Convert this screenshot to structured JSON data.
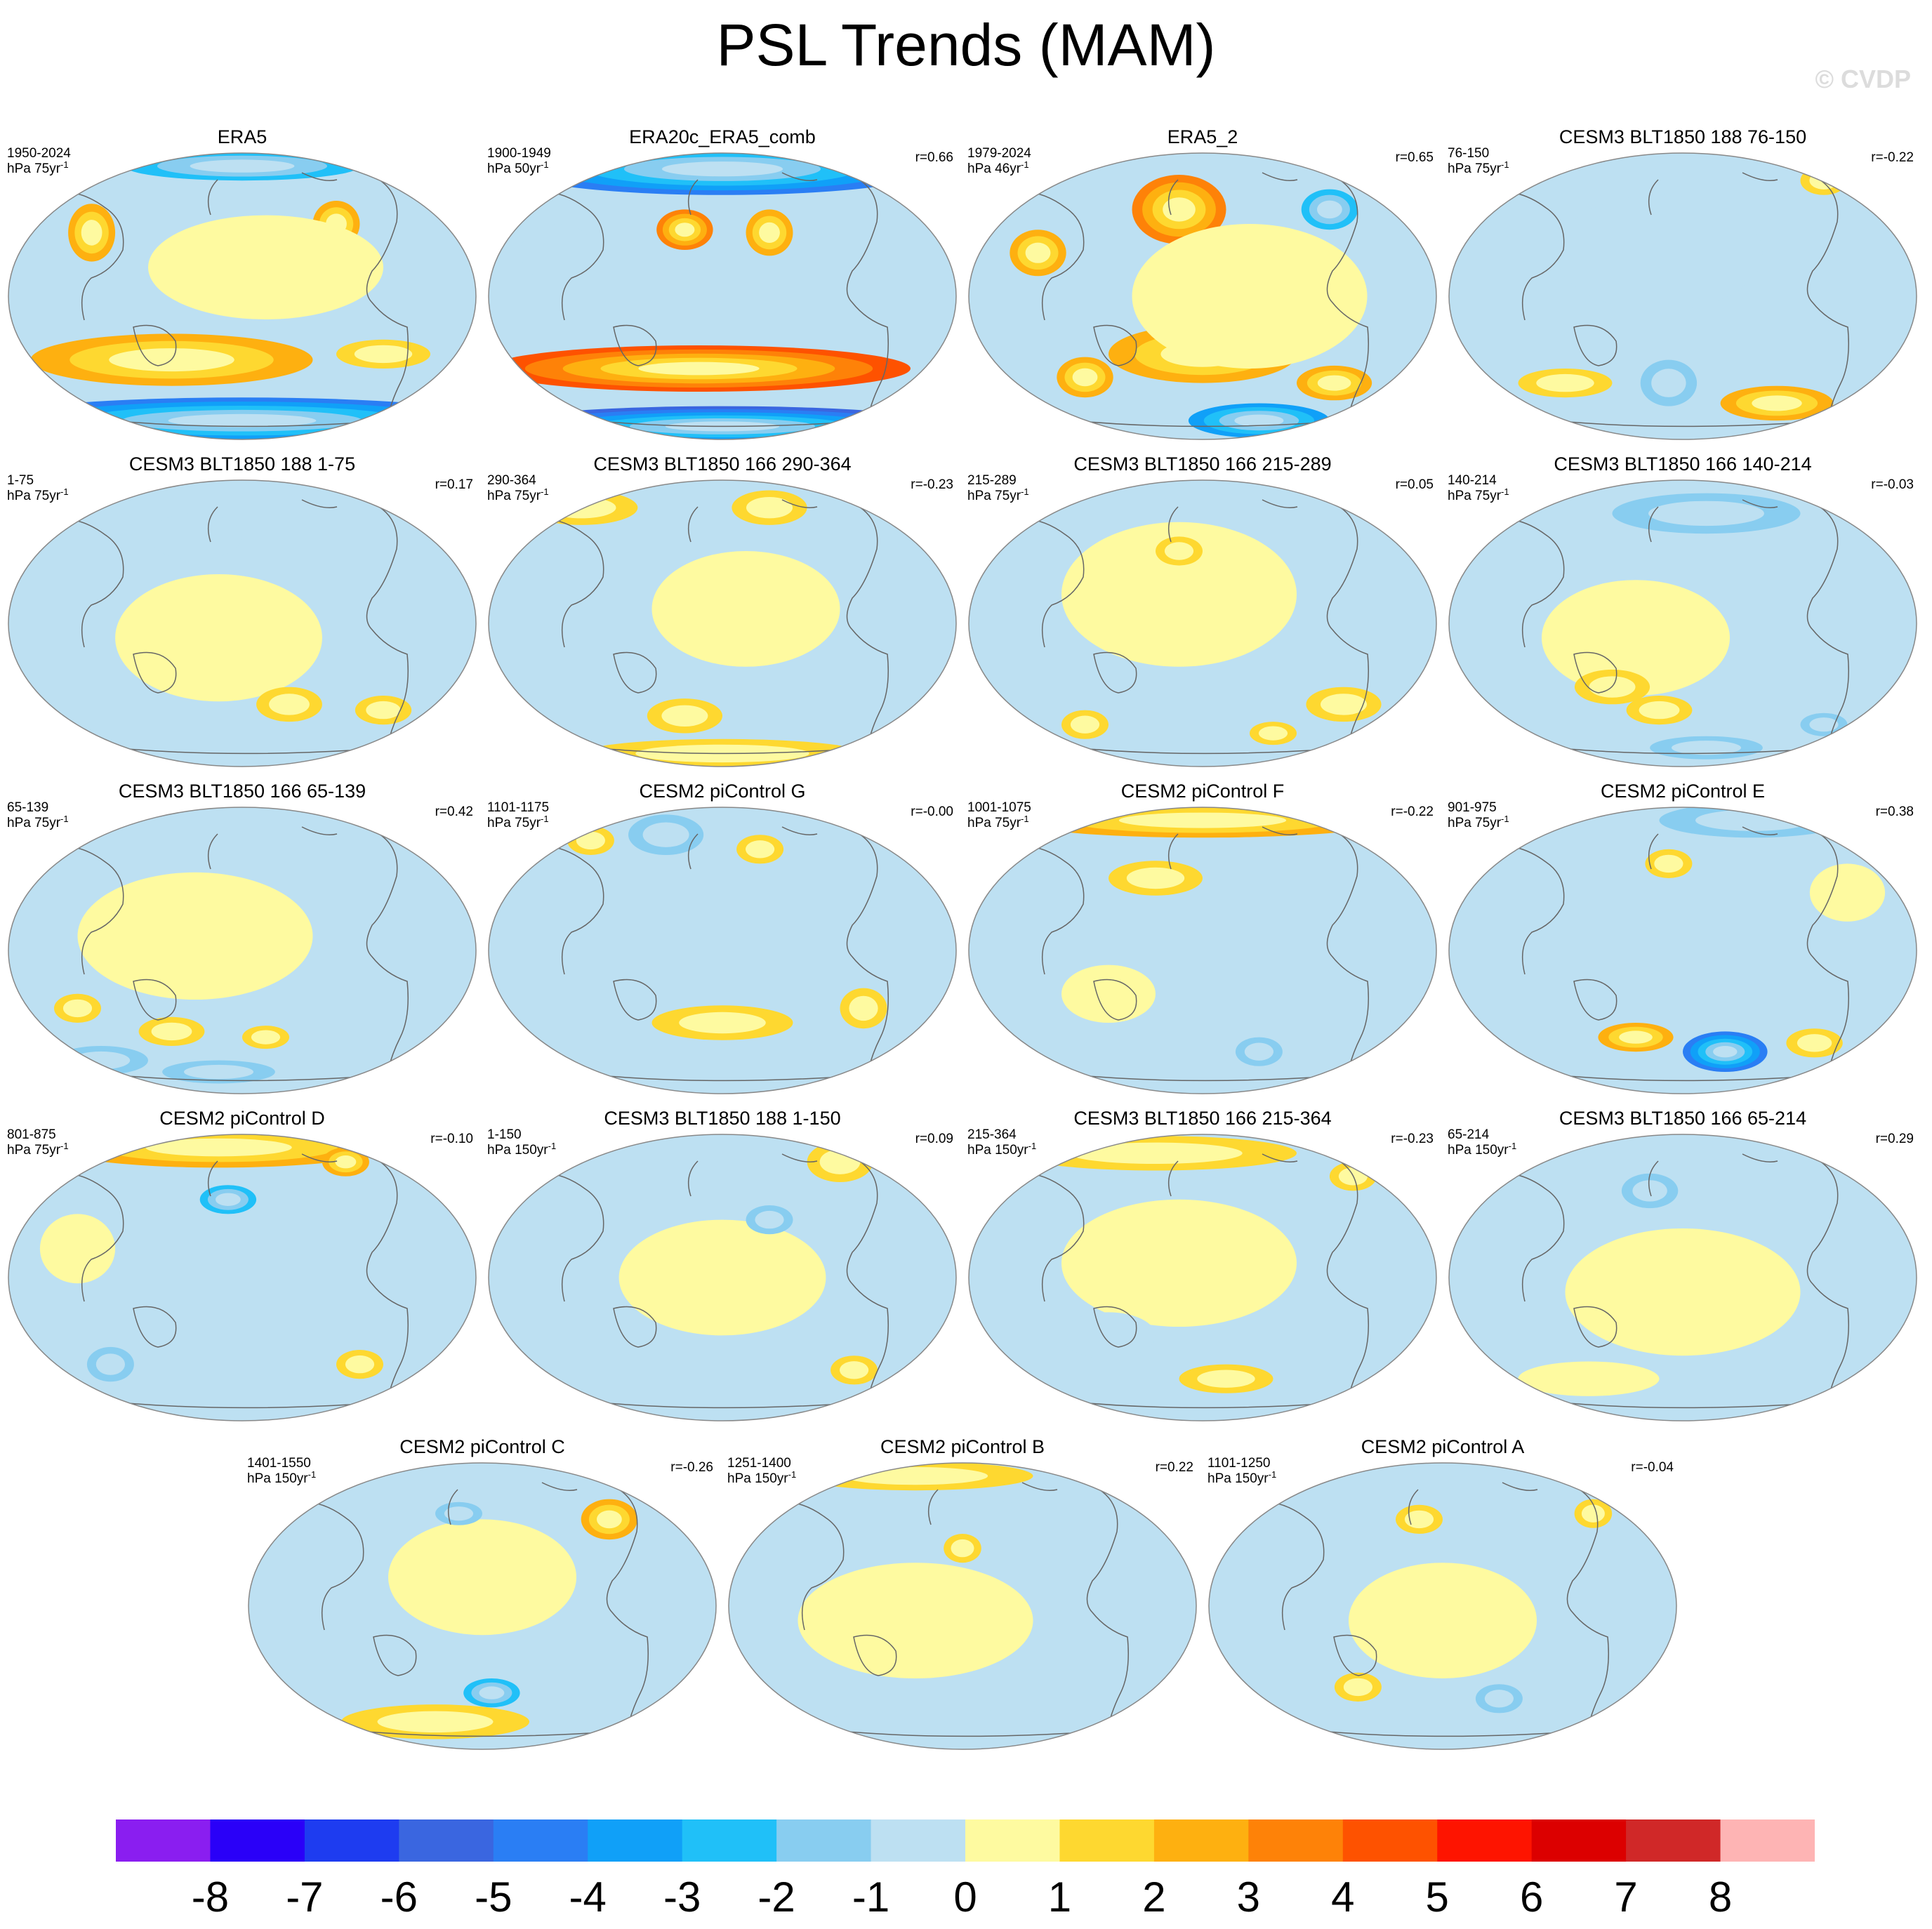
{
  "title": "PSL Trends (MAM)",
  "watermark": "© CVDP",
  "panels": [
    {
      "title": "ERA5",
      "period": "1950-2024",
      "units": "hPa 75yr",
      "exp": "-1",
      "corr": "",
      "blobs": [
        [
          0.18,
          0.28,
          0.05,
          0.1,
          3
        ],
        [
          0.7,
          0.25,
          0.05,
          0.08,
          3
        ],
        [
          0.35,
          0.72,
          0.3,
          0.09,
          3
        ],
        [
          0.8,
          0.7,
          0.1,
          0.05,
          2
        ],
        [
          0.5,
          0.93,
          0.55,
          0.08,
          -5
        ],
        [
          0.5,
          0.05,
          0.25,
          0.05,
          -3
        ],
        [
          0.55,
          0.4,
          0.25,
          0.18,
          0.4
        ]
      ]
    },
    {
      "title": "ERA20c_ERA5_comb",
      "period": "1900-1949",
      "units": "hPa 50yr",
      "exp": "-1",
      "corr": "r=0.66",
      "blobs": [
        [
          0.5,
          0.06,
          0.45,
          0.09,
          -5
        ],
        [
          0.42,
          0.27,
          0.06,
          0.07,
          4
        ],
        [
          0.6,
          0.28,
          0.05,
          0.08,
          3
        ],
        [
          0.45,
          0.75,
          0.45,
          0.08,
          5
        ],
        [
          0.5,
          0.95,
          0.5,
          0.07,
          -6
        ],
        [
          0.15,
          0.35,
          0.08,
          0.1,
          -1
        ]
      ]
    },
    {
      "title": "ERA5_2",
      "period": "1979-2024",
      "units": "hPa 46yr",
      "exp": "-1",
      "corr": "r=0.65",
      "blobs": [
        [
          0.45,
          0.2,
          0.1,
          0.12,
          4
        ],
        [
          0.77,
          0.2,
          0.06,
          0.07,
          -3
        ],
        [
          0.15,
          0.35,
          0.06,
          0.08,
          3
        ],
        [
          0.1,
          0.08,
          0.1,
          0.06,
          -3
        ],
        [
          0.5,
          0.7,
          0.2,
          0.1,
          3
        ],
        [
          0.25,
          0.78,
          0.06,
          0.07,
          3
        ],
        [
          0.78,
          0.8,
          0.08,
          0.06,
          3
        ],
        [
          0.62,
          0.93,
          0.15,
          0.06,
          -4
        ],
        [
          0.6,
          0.5,
          0.25,
          0.25,
          0.5
        ]
      ]
    },
    {
      "title": "CESM3 BLT1850 188 76-150",
      "period": "76-150",
      "units": "hPa 75yr",
      "exp": "-1",
      "corr": "r=-0.22",
      "blobs": [
        [
          0.45,
          0.35,
          0.22,
          0.2,
          -1
        ],
        [
          0.47,
          0.8,
          0.06,
          0.08,
          -2
        ],
        [
          0.7,
          0.87,
          0.12,
          0.06,
          3
        ],
        [
          0.25,
          0.8,
          0.1,
          0.05,
          2
        ],
        [
          0.8,
          0.1,
          0.05,
          0.05,
          2
        ]
      ]
    },
    {
      "title": "CESM3 BLT1850 188 1-75",
      "period": "1-75",
      "units": "hPa 75yr",
      "exp": "-1",
      "corr": "r=0.17",
      "blobs": [
        [
          0.45,
          0.55,
          0.22,
          0.22,
          0.5
        ],
        [
          0.6,
          0.78,
          0.07,
          0.06,
          2
        ],
        [
          0.8,
          0.8,
          0.06,
          0.05,
          2
        ],
        [
          0.4,
          0.2,
          0.1,
          0.08,
          -1
        ]
      ]
    },
    {
      "title": "CESM3 BLT1850 166 290-364",
      "period": "290-364",
      "units": "hPa 75yr",
      "exp": "-1",
      "corr": "r=-0.23",
      "blobs": [
        [
          0.2,
          0.1,
          0.12,
          0.06,
          2
        ],
        [
          0.6,
          0.1,
          0.08,
          0.06,
          2
        ],
        [
          0.42,
          0.82,
          0.08,
          0.06,
          2
        ],
        [
          0.5,
          0.95,
          0.3,
          0.05,
          2
        ],
        [
          0.55,
          0.45,
          0.2,
          0.2,
          0.5
        ]
      ]
    },
    {
      "title": "CESM3 BLT1850 166 215-289",
      "period": "215-289",
      "units": "hPa 75yr",
      "exp": "-1",
      "corr": "r=0.05",
      "blobs": [
        [
          0.45,
          0.4,
          0.25,
          0.25,
          0.5
        ],
        [
          0.45,
          0.25,
          0.05,
          0.05,
          1.5
        ],
        [
          0.25,
          0.85,
          0.05,
          0.05,
          2
        ],
        [
          0.8,
          0.78,
          0.08,
          0.06,
          2
        ],
        [
          0.65,
          0.88,
          0.05,
          0.04,
          2
        ]
      ]
    },
    {
      "title": "CESM3 BLT1850 166 140-214",
      "period": "140-214",
      "units": "hPa 75yr",
      "exp": "-1",
      "corr": "r=-0.03",
      "blobs": [
        [
          0.55,
          0.12,
          0.2,
          0.07,
          -2
        ],
        [
          0.4,
          0.55,
          0.2,
          0.2,
          0.5
        ],
        [
          0.35,
          0.72,
          0.08,
          0.06,
          2
        ],
        [
          0.45,
          0.8,
          0.07,
          0.05,
          2
        ],
        [
          0.55,
          0.93,
          0.12,
          0.04,
          -2
        ],
        [
          0.8,
          0.85,
          0.05,
          0.04,
          -2
        ]
      ]
    },
    {
      "title": "CESM3 BLT1850 166 65-139",
      "period": "65-139",
      "units": "hPa 75yr",
      "exp": "-1",
      "corr": "r=0.42",
      "blobs": [
        [
          0.4,
          0.45,
          0.25,
          0.22,
          0.5
        ],
        [
          0.15,
          0.7,
          0.05,
          0.05,
          2
        ],
        [
          0.35,
          0.78,
          0.07,
          0.05,
          2
        ],
        [
          0.55,
          0.8,
          0.05,
          0.04,
          2
        ],
        [
          0.2,
          0.88,
          0.1,
          0.05,
          -1.5
        ],
        [
          0.45,
          0.92,
          0.12,
          0.04,
          -2
        ]
      ]
    },
    {
      "title": "CESM2 piControl G",
      "period": "1101-1175",
      "units": "hPa 75yr",
      "exp": "-1",
      "corr": "r=-0.00",
      "blobs": [
        [
          0.38,
          0.1,
          0.08,
          0.07,
          -2
        ],
        [
          0.22,
          0.12,
          0.05,
          0.05,
          2
        ],
        [
          0.58,
          0.15,
          0.05,
          0.05,
          2
        ],
        [
          0.5,
          0.75,
          0.15,
          0.06,
          1.5
        ],
        [
          0.8,
          0.7,
          0.05,
          0.07,
          2
        ]
      ]
    },
    {
      "title": "CESM2 piControl F",
      "period": "1001-1075",
      "units": "hPa 75yr",
      "exp": "-1",
      "corr": "r=-0.22",
      "blobs": [
        [
          0.5,
          0.05,
          0.4,
          0.06,
          3
        ],
        [
          0.4,
          0.25,
          0.1,
          0.06,
          1.5
        ],
        [
          0.62,
          0.85,
          0.05,
          0.05,
          -2
        ],
        [
          0.3,
          0.65,
          0.1,
          0.1,
          1
        ]
      ]
    },
    {
      "title": "CESM2 piControl E",
      "period": "901-975",
      "units": "hPa 75yr",
      "exp": "-1",
      "corr": "r=0.38",
      "blobs": [
        [
          0.65,
          0.05,
          0.2,
          0.06,
          -2
        ],
        [
          0.47,
          0.2,
          0.05,
          0.05,
          2
        ],
        [
          0.59,
          0.85,
          0.09,
          0.07,
          -5
        ],
        [
          0.4,
          0.8,
          0.08,
          0.05,
          3
        ],
        [
          0.78,
          0.82,
          0.06,
          0.05,
          2
        ],
        [
          0.85,
          0.3,
          0.08,
          0.1,
          1
        ]
      ]
    },
    {
      "title": "CESM2 piControl D",
      "period": "801-875",
      "units": "hPa 75yr",
      "exp": "-1",
      "corr": "r=-0.10",
      "blobs": [
        [
          0.45,
          0.05,
          0.35,
          0.07,
          3
        ],
        [
          0.72,
          0.1,
          0.05,
          0.05,
          3
        ],
        [
          0.47,
          0.23,
          0.06,
          0.05,
          -3
        ],
        [
          0.22,
          0.8,
          0.05,
          0.06,
          -2
        ],
        [
          0.75,
          0.8,
          0.05,
          0.05,
          2
        ],
        [
          0.15,
          0.4,
          0.08,
          0.12,
          1
        ]
      ]
    },
    {
      "title": "CESM3 BLT1850 188 1-150",
      "period": "1-150",
      "units": "hPa 150yr",
      "exp": "-1",
      "corr": "r=0.09",
      "blobs": [
        [
          0.75,
          0.1,
          0.07,
          0.07,
          2
        ],
        [
          0.5,
          0.5,
          0.22,
          0.2,
          0.5
        ],
        [
          0.78,
          0.82,
          0.05,
          0.05,
          2
        ],
        [
          0.6,
          0.3,
          0.05,
          0.05,
          -1.5
        ]
      ]
    },
    {
      "title": "CESM3 BLT1850 166 215-364",
      "period": "215-364",
      "units": "hPa 150yr",
      "exp": "-1",
      "corr": "r=-0.23",
      "blobs": [
        [
          0.4,
          0.07,
          0.3,
          0.06,
          2
        ],
        [
          0.82,
          0.15,
          0.05,
          0.05,
          2
        ],
        [
          0.45,
          0.45,
          0.25,
          0.22,
          0.5
        ],
        [
          0.55,
          0.85,
          0.1,
          0.05,
          2
        ],
        [
          0.3,
          0.7,
          0.1,
          0.08,
          -1
        ]
      ]
    },
    {
      "title": "CESM3 BLT1850 166 65-214",
      "period": "65-214",
      "units": "hPa 150yr",
      "exp": "-1",
      "corr": "r=0.29",
      "blobs": [
        [
          0.43,
          0.2,
          0.06,
          0.06,
          -2
        ],
        [
          0.5,
          0.55,
          0.25,
          0.22,
          0.5
        ],
        [
          0.3,
          0.85,
          0.15,
          0.06,
          1
        ],
        [
          0.75,
          0.85,
          0.05,
          0.05,
          -1
        ]
      ]
    },
    {
      "title": "CESM2 piControl C",
      "period": "1401-1550",
      "units": "hPa 150yr",
      "exp": "-1",
      "corr": "r=-0.26",
      "blobs": [
        [
          0.77,
          0.2,
          0.06,
          0.07,
          3
        ],
        [
          0.52,
          0.8,
          0.06,
          0.05,
          -3
        ],
        [
          0.4,
          0.9,
          0.2,
          0.06,
          2
        ],
        [
          0.5,
          0.4,
          0.2,
          0.2,
          0.5
        ],
        [
          0.45,
          0.18,
          0.05,
          0.04,
          -2
        ]
      ]
    },
    {
      "title": "CESM2 piControl B",
      "period": "1251-1400",
      "units": "hPa 150yr",
      "exp": "-1",
      "corr": "r=0.22",
      "blobs": [
        [
          0.4,
          0.05,
          0.25,
          0.05,
          2
        ],
        [
          0.5,
          0.3,
          0.04,
          0.05,
          2
        ],
        [
          0.4,
          0.55,
          0.25,
          0.2,
          0.5
        ],
        [
          0.5,
          0.92,
          0.35,
          0.06,
          -1
        ],
        [
          0.58,
          0.2,
          0.08,
          0.06,
          -1
        ]
      ]
    },
    {
      "title": "CESM2 piControl A",
      "period": "1101-1250",
      "units": "hPa 150yr",
      "exp": "-1",
      "corr": "r=-0.04",
      "blobs": [
        [
          0.45,
          0.2,
          0.05,
          0.05,
          2
        ],
        [
          0.82,
          0.18,
          0.04,
          0.05,
          2
        ],
        [
          0.5,
          0.55,
          0.2,
          0.2,
          0.5
        ],
        [
          0.62,
          0.82,
          0.05,
          0.05,
          -1.5
        ],
        [
          0.32,
          0.78,
          0.05,
          0.05,
          2
        ]
      ]
    }
  ],
  "colorbar": {
    "labels": [
      "-8",
      "-7",
      "-6",
      "-5",
      "-4",
      "-3",
      "-2",
      "-1",
      "0",
      "1",
      "2",
      "3",
      "4",
      "5",
      "6",
      "7",
      "8"
    ],
    "colors": [
      "#8a1ef0",
      "#2a00f8",
      "#1e3cf0",
      "#3a66e0",
      "#2a7ef4",
      "#10a0f8",
      "#20c0f8",
      "#88cdf0",
      "#bde0f2",
      "#fefaa0",
      "#fed830",
      "#feb010",
      "#fe8208",
      "#fe5200",
      "#fe1400",
      "#dc0000",
      "#d02828",
      "#feb4b4"
    ]
  }
}
